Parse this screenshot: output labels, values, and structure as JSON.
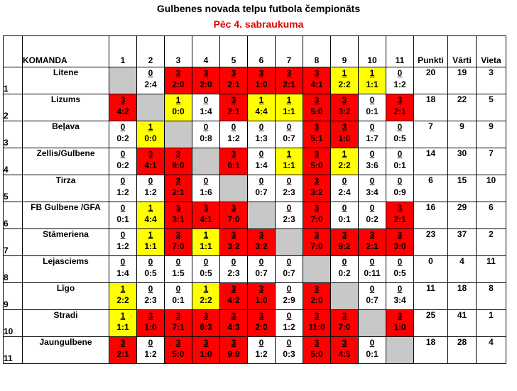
{
  "title": "Gulbenes novada telpu futbola čempionāts",
  "subtitle": "Pēc 4. sabraukuma",
  "headers": {
    "team": "KOMANDA",
    "cols": [
      "1",
      "2",
      "3",
      "4",
      "5",
      "6",
      "7",
      "8",
      "9",
      "10",
      "11"
    ],
    "points": "Punkti",
    "goals": "Vārti",
    "place": "Vieta"
  },
  "colors": {
    "win": "#ff0000",
    "draw": "#ffff00",
    "loss": "#ffffff",
    "self": "#c8c8c8"
  },
  "rows": [
    {
      "idx": "1",
      "team": "Litene",
      "cells": [
        null,
        {
          "p": "0",
          "s": "2:4",
          "c": "white"
        },
        {
          "p": "3",
          "s": "2:0",
          "c": "red"
        },
        {
          "p": "3",
          "s": "2:0",
          "c": "red"
        },
        {
          "p": "3",
          "s": "2:1",
          "c": "red"
        },
        {
          "p": "3",
          "s": "1:0",
          "c": "red"
        },
        {
          "p": "3",
          "s": "2:1",
          "c": "red"
        },
        {
          "p": "3",
          "s": "4:1",
          "c": "red"
        },
        {
          "p": "1",
          "s": "2:2",
          "c": "yellow"
        },
        {
          "p": "1",
          "s": "1:1",
          "c": "yellow"
        },
        {
          "p": "0",
          "s": "1:2",
          "c": "white"
        }
      ],
      "points": "20",
      "goals": "19",
      "place": "3"
    },
    {
      "idx": "2",
      "team": "Lizums",
      "cells": [
        {
          "p": "3",
          "s": "4:2",
          "c": "red"
        },
        null,
        {
          "p": "1",
          "s": "0:0",
          "c": "yellow"
        },
        {
          "p": "0",
          "s": "1:4",
          "c": "white"
        },
        {
          "p": "3",
          "s": "2:1",
          "c": "red"
        },
        {
          "p": "1",
          "s": "4:4",
          "c": "yellow"
        },
        {
          "p": "1",
          "s": "1:1",
          "c": "yellow"
        },
        {
          "p": "3",
          "s": "5:0",
          "c": "red"
        },
        {
          "p": "3",
          "s": "3:2",
          "c": "red"
        },
        {
          "p": "0",
          "s": "0:1",
          "c": "white"
        },
        {
          "p": "3",
          "s": "2:1",
          "c": "red"
        }
      ],
      "points": "18",
      "goals": "22",
      "place": "5"
    },
    {
      "idx": "3",
      "team": "Beļava",
      "cells": [
        {
          "p": "0",
          "s": "0:2",
          "c": "white"
        },
        {
          "p": "1",
          "s": "0:0",
          "c": "yellow"
        },
        null,
        {
          "p": "0",
          "s": "0:8",
          "c": "white"
        },
        {
          "p": "0",
          "s": "1:2",
          "c": "white"
        },
        {
          "p": "0",
          "s": "1:3",
          "c": "white"
        },
        {
          "p": "0",
          "s": "0:7",
          "c": "white"
        },
        {
          "p": "3",
          "s": "5:1",
          "c": "red"
        },
        {
          "p": "3",
          "s": "1:0",
          "c": "red"
        },
        {
          "p": "0",
          "s": "1:7",
          "c": "white"
        },
        {
          "p": "0",
          "s": "0:5",
          "c": "white"
        }
      ],
      "points": "7",
      "goals": "9",
      "place": "9"
    },
    {
      "idx": "4",
      "team": "Zellis/Gulbene",
      "cells": [
        {
          "p": "0",
          "s": "0:2",
          "c": "white"
        },
        {
          "p": "3",
          "s": "4:1",
          "c": "red"
        },
        {
          "p": "3",
          "s": "8:0",
          "c": "red"
        },
        null,
        {
          "p": "3",
          "s": "6:1",
          "c": "red"
        },
        {
          "p": "0",
          "s": "1:4",
          "c": "white"
        },
        {
          "p": "1",
          "s": "1:1",
          "c": "yellow"
        },
        {
          "p": "3",
          "s": "5:0",
          "c": "red"
        },
        {
          "p": "1",
          "s": "2:2",
          "c": "yellow"
        },
        {
          "p": "0",
          "s": "3:6",
          "c": "white"
        },
        {
          "p": "0",
          "s": "0:1",
          "c": "white"
        }
      ],
      "points": "14",
      "goals": "30",
      "place": "7"
    },
    {
      "idx": "5",
      "team": "Tirza",
      "cells": [
        {
          "p": "0",
          "s": "1:2",
          "c": "white"
        },
        {
          "p": "0",
          "s": "1:2",
          "c": "white"
        },
        {
          "p": "3",
          "s": "2:1",
          "c": "red"
        },
        {
          "p": "0",
          "s": "1:6",
          "c": "white"
        },
        null,
        {
          "p": "0",
          "s": "0:7",
          "c": "white"
        },
        {
          "p": "0",
          "s": "2:3",
          "c": "white"
        },
        {
          "p": "3",
          "s": "3:2",
          "c": "red"
        },
        {
          "p": "0",
          "s": "2:4",
          "c": "white"
        },
        {
          "p": "0",
          "s": "3:4",
          "c": "white"
        },
        {
          "p": "0",
          "s": "0:9",
          "c": "white"
        }
      ],
      "points": "6",
      "goals": "15",
      "place": "10"
    },
    {
      "idx": "6",
      "team": "FB Gulbene /GFA",
      "cells": [
        {
          "p": "0",
          "s": "0:1",
          "c": "white"
        },
        {
          "p": "1",
          "s": "4:4",
          "c": "yellow"
        },
        {
          "p": "3",
          "s": "3:1",
          "c": "red"
        },
        {
          "p": "3",
          "s": "4:1",
          "c": "red"
        },
        {
          "p": "3",
          "s": "7:0",
          "c": "red"
        },
        null,
        {
          "p": "0",
          "s": "2:3",
          "c": "white"
        },
        {
          "p": "3",
          "s": "7:0",
          "c": "red"
        },
        {
          "p": "0",
          "s": "0:1",
          "c": "white"
        },
        {
          "p": "0",
          "s": "0:2",
          "c": "white"
        },
        {
          "p": "3",
          "s": "2:1",
          "c": "red"
        }
      ],
      "points": "16",
      "goals": "29",
      "place": "6"
    },
    {
      "idx": "7",
      "team": "Stāmeriena",
      "cells": [
        {
          "p": "0",
          "s": "1:2",
          "c": "white"
        },
        {
          "p": "1",
          "s": "1:1",
          "c": "yellow"
        },
        {
          "p": "3",
          "s": "7:0",
          "c": "red"
        },
        {
          "p": "1",
          "s": "1:1",
          "c": "yellow"
        },
        {
          "p": "3",
          "s": "3:2",
          "c": "red"
        },
        {
          "p": "3",
          "s": "3:2",
          "c": "red"
        },
        null,
        {
          "p": "3",
          "s": "7:0",
          "c": "red"
        },
        {
          "p": "3",
          "s": "9:2",
          "c": "red"
        },
        {
          "p": "3",
          "s": "2:1",
          "c": "red"
        },
        {
          "p": "3",
          "s": "3:0",
          "c": "red"
        }
      ],
      "points": "23",
      "goals": "37",
      "place": "2"
    },
    {
      "idx": "8",
      "team": "Lejasciems",
      "cells": [
        {
          "p": "0",
          "s": "1:4",
          "c": "white"
        },
        {
          "p": "0",
          "s": "0:5",
          "c": "white"
        },
        {
          "p": "0",
          "s": "1:5",
          "c": "white"
        },
        {
          "p": "0",
          "s": "0:5",
          "c": "white"
        },
        {
          "p": "0",
          "s": "2:3",
          "c": "white"
        },
        {
          "p": "0",
          "s": "0:7",
          "c": "white"
        },
        {
          "p": "0",
          "s": "0:7",
          "c": "white"
        },
        null,
        {
          "p": "0",
          "s": "0:2",
          "c": "white"
        },
        {
          "p": "0",
          "s": "0:11",
          "c": "white"
        },
        {
          "p": "0",
          "s": "0:5",
          "c": "white"
        }
      ],
      "points": "0",
      "goals": "4",
      "place": "11"
    },
    {
      "idx": "9",
      "team": "Līgo",
      "cells": [
        {
          "p": "1",
          "s": "2:2",
          "c": "yellow"
        },
        {
          "p": "0",
          "s": "2:3",
          "c": "white"
        },
        {
          "p": "0",
          "s": "0:1",
          "c": "white"
        },
        {
          "p": "1",
          "s": "2:2",
          "c": "yellow"
        },
        {
          "p": "3",
          "s": "4:2",
          "c": "red"
        },
        {
          "p": "3",
          "s": "1:0",
          "c": "red"
        },
        {
          "p": "0",
          "s": "2:9",
          "c": "white"
        },
        {
          "p": "3",
          "s": "2:0",
          "c": "red"
        },
        null,
        {
          "p": "0",
          "s": "0:7",
          "c": "white"
        },
        {
          "p": "0",
          "s": "3:4",
          "c": "white"
        }
      ],
      "points": "11",
      "goals": "18",
      "place": "8"
    },
    {
      "idx": "10",
      "team": "Stradi",
      "cells": [
        {
          "p": "1",
          "s": "1:1",
          "c": "yellow"
        },
        {
          "p": "3",
          "s": "1:0",
          "c": "red"
        },
        {
          "p": "3",
          "s": "7:1",
          "c": "red"
        },
        {
          "p": "3",
          "s": "6:3",
          "c": "red"
        },
        {
          "p": "3",
          "s": "4:3",
          "c": "red"
        },
        {
          "p": "3",
          "s": "2:0",
          "c": "red"
        },
        {
          "p": "0",
          "s": "1:2",
          "c": "white"
        },
        {
          "p": "3",
          "s": "11:0",
          "c": "red"
        },
        {
          "p": "3",
          "s": "7:0",
          "c": "red"
        },
        null,
        {
          "p": "3",
          "s": "1:0",
          "c": "red"
        }
      ],
      "points": "25",
      "goals": "41",
      "place": "1"
    },
    {
      "idx": "11",
      "team": "Jaungulbene",
      "cells": [
        {
          "p": "3",
          "s": "2:1",
          "c": "red"
        },
        {
          "p": "0",
          "s": "1:2",
          "c": "white"
        },
        {
          "p": "3",
          "s": "5:0",
          "c": "red"
        },
        {
          "p": "3",
          "s": "1:0",
          "c": "red"
        },
        {
          "p": "3",
          "s": "9:0",
          "c": "red"
        },
        {
          "p": "0",
          "s": "1:2",
          "c": "white"
        },
        {
          "p": "0",
          "s": "0:3",
          "c": "white"
        },
        {
          "p": "3",
          "s": "5:0",
          "c": "red"
        },
        {
          "p": "3",
          "s": "4:3",
          "c": "red"
        },
        {
          "p": "0",
          "s": "0:1",
          "c": "white"
        },
        null
      ],
      "points": "18",
      "goals": "28",
      "place": "4"
    }
  ]
}
